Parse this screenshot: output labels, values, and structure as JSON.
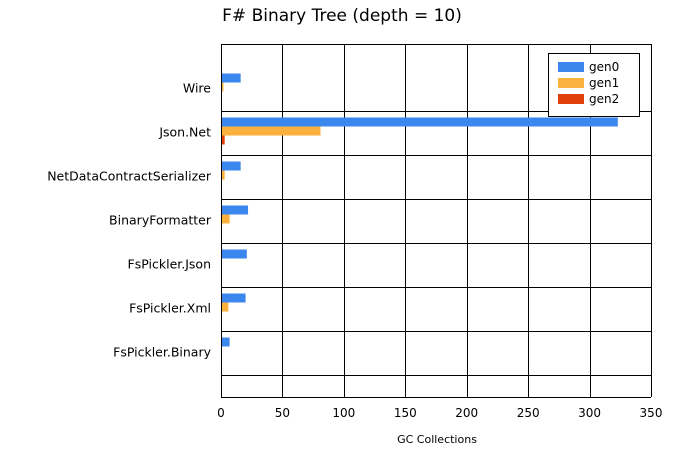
{
  "chart_data": {
    "type": "bar",
    "orientation": "horizontal",
    "title": "F# Binary Tree (depth = 10)",
    "xlabel": "GC Collections",
    "ylabel": "",
    "xlim": [
      0,
      350
    ],
    "xticks": [
      0,
      50,
      100,
      150,
      200,
      250,
      300,
      350
    ],
    "grid": true,
    "legend_position": "top-right",
    "categories": [
      "Wire",
      "Json.Net",
      "NetDataContractSerializer",
      "BinaryFormatter",
      "FsPickler.Json",
      "FsPickler.Xml",
      "FsPickler.Binary"
    ],
    "series": [
      {
        "name": "gen0",
        "color": "#3C87EE",
        "values": [
          16,
          323,
          16,
          22,
          21,
          20,
          7
        ]
      },
      {
        "name": "gen1",
        "color": "#FBB13E",
        "values": [
          2,
          81,
          3,
          7,
          0,
          6,
          0
        ]
      },
      {
        "name": "gen2",
        "color": "#E0400A",
        "values": [
          0,
          3,
          0,
          0,
          0,
          0,
          0
        ]
      }
    ]
  }
}
